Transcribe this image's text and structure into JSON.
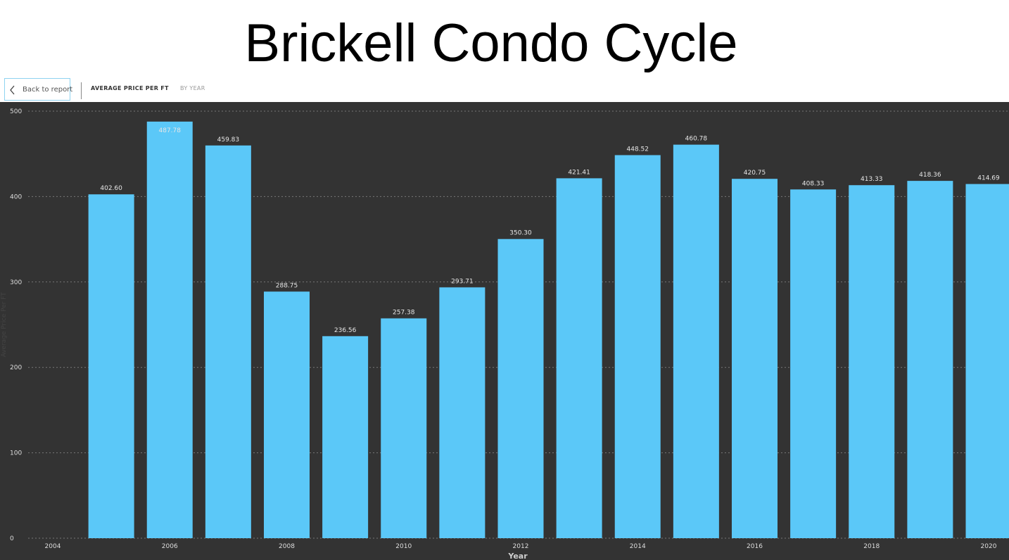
{
  "slide": {
    "title": "Brickell Condo Cycle"
  },
  "toolbar": {
    "back_label": "Back to report",
    "back_icon": "chevron-left-icon",
    "report_title": "AVERAGE PRICE PER FT",
    "report_subtitle": "BY YEAR"
  },
  "colors": {
    "bar": "#5bc8f8",
    "background": "#333333",
    "grid": "#777777",
    "toolbar_accent": "#8fd3f0"
  },
  "chart_data": {
    "type": "bar",
    "categories": [
      2005,
      2006,
      2007,
      2008,
      2009,
      2010,
      2011,
      2012,
      2013,
      2014,
      2015,
      2016,
      2017,
      2018,
      2019,
      2020
    ],
    "values": [
      402.6,
      487.78,
      459.83,
      288.75,
      236.56,
      257.38,
      293.71,
      350.3,
      421.41,
      448.52,
      460.78,
      420.75,
      408.33,
      413.33,
      418.36,
      414.69
    ],
    "value_labels": [
      "402.60",
      "487.78",
      "459.83",
      "288.75",
      "236.56",
      "257.38",
      "293.71",
      "350.30",
      "421.41",
      "448.52",
      "460.78",
      "420.75",
      "408.33",
      "413.33",
      "418.36",
      "414.69"
    ],
    "xlabel": "Year",
    "ylabel": "Average Price Per FT",
    "ylim": [
      0,
      500
    ],
    "yticks": [
      0,
      100,
      200,
      300,
      400,
      500
    ],
    "xlim": [
      2004,
      2020
    ],
    "xticks": [
      "2004",
      "2006",
      "2008",
      "2010",
      "2012",
      "2014",
      "2016",
      "2018",
      "2020"
    ],
    "grid": true,
    "legend": "none"
  }
}
